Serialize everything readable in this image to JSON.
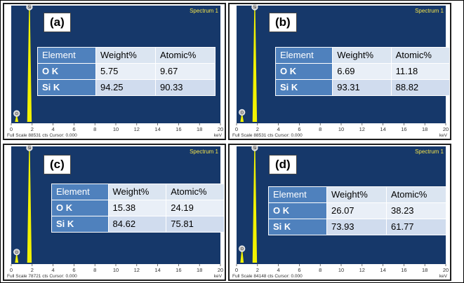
{
  "chart_data": [
    {
      "type": "line",
      "panel_label": "(a)",
      "spectrum_label": "Spectrum 1",
      "xlabel": "keV",
      "footer": "Full Scale 88531 cts Cursor: 0.000",
      "xlim": [
        0,
        20
      ],
      "x_ticks": [
        0,
        2,
        4,
        6,
        8,
        10,
        12,
        14,
        16,
        18,
        20
      ],
      "peaks": [
        {
          "element": "Si",
          "energy_kev": 1.74,
          "relative_height": 1.0
        },
        {
          "element": "O",
          "energy_kev": 0.52,
          "relative_height": 0.05
        }
      ],
      "table": {
        "headers": [
          "Element",
          "Weight%",
          "Atomic%"
        ],
        "rows": [
          [
            "O K",
            "5.75",
            "9.67"
          ],
          [
            "Si K",
            "94.25",
            "90.33"
          ]
        ]
      }
    },
    {
      "type": "line",
      "panel_label": "(b)",
      "spectrum_label": "Spectrum 1",
      "xlabel": "keV",
      "footer": "Full Scale 88531 cts Cursor: 0.000",
      "xlim": [
        0,
        20
      ],
      "x_ticks": [
        0,
        2,
        4,
        6,
        8,
        10,
        12,
        14,
        16,
        18,
        20
      ],
      "peaks": [
        {
          "element": "Si",
          "energy_kev": 1.74,
          "relative_height": 1.0
        },
        {
          "element": "O",
          "energy_kev": 0.52,
          "relative_height": 0.06
        }
      ],
      "table": {
        "headers": [
          "Element",
          "Weight%",
          "Atomic%"
        ],
        "rows": [
          [
            "O K",
            "6.69",
            "11.18"
          ],
          [
            "Si K",
            "93.31",
            "88.82"
          ]
        ]
      }
    },
    {
      "type": "line",
      "panel_label": "(c)",
      "spectrum_label": "Spectrum 1",
      "xlabel": "keV",
      "footer": "Full Scale 78721 cts Cursor: 0.000",
      "xlim": [
        0,
        20
      ],
      "x_ticks": [
        0,
        2,
        4,
        6,
        8,
        10,
        12,
        14,
        16,
        18,
        20
      ],
      "peaks": [
        {
          "element": "Si",
          "energy_kev": 1.74,
          "relative_height": 1.0
        },
        {
          "element": "O",
          "energy_kev": 0.52,
          "relative_height": 0.07
        }
      ],
      "table": {
        "headers": [
          "Element",
          "Weight%",
          "Atomic%"
        ],
        "rows": [
          [
            "O K",
            "15.38",
            "24.19"
          ],
          [
            "Si K",
            "84.62",
            "75.81"
          ]
        ]
      }
    },
    {
      "type": "line",
      "panel_label": "(d)",
      "spectrum_label": "Spectrum 1",
      "xlabel": "keV",
      "footer": "Full Scale 84148 cts Cursor: 0.000",
      "xlim": [
        0,
        20
      ],
      "x_ticks": [
        0,
        2,
        4,
        6,
        8,
        10,
        12,
        14,
        16,
        18,
        20
      ],
      "peaks": [
        {
          "element": "Si",
          "energy_kev": 1.74,
          "relative_height": 1.0
        },
        {
          "element": "O",
          "energy_kev": 0.52,
          "relative_height": 0.1
        }
      ],
      "table": {
        "headers": [
          "Element",
          "Weight%",
          "Atomic%"
        ],
        "rows": [
          [
            "O K",
            "26.07",
            "38.23"
          ],
          [
            "Si K",
            "73.93",
            "61.77"
          ]
        ]
      }
    }
  ],
  "colors": {
    "plot_background": "#16386a",
    "peak_fill": "#f2f200",
    "spectrum_label": "#f2e24a",
    "table_header": "#4f81bd",
    "axis_text": "#333333"
  }
}
